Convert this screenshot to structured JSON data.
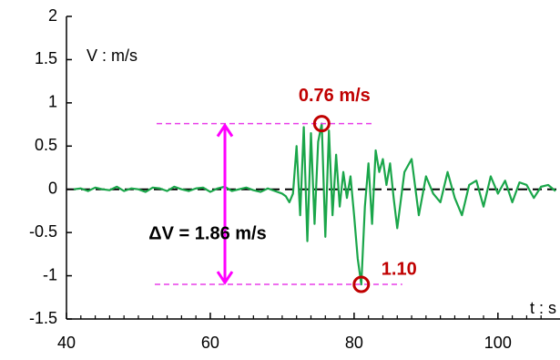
{
  "chart_data": {
    "type": "line",
    "y_label": "V : m/s",
    "x_label": "t : s",
    "annotations": {
      "peak_label": "0.76 m/s",
      "trough_label": "1.10",
      "delta_label": "ΔV = 1.86 m/s"
    },
    "xlim": [
      40,
      108
    ],
    "xticks": [
      40,
      60,
      80,
      100
    ],
    "xminorticks": [
      42,
      44,
      46,
      48,
      50,
      52,
      54,
      56,
      58,
      62,
      64,
      66,
      68,
      70,
      72,
      74,
      76,
      78,
      82,
      84,
      86,
      88,
      90,
      92,
      94,
      96,
      98,
      102,
      104,
      106
    ],
    "ylim": [
      -1.5,
      2
    ],
    "yticks": [
      -1.5,
      -1,
      -0.5,
      0,
      0.5,
      1,
      1.5,
      2
    ],
    "x": [
      41,
      42,
      43,
      44,
      45,
      46,
      47,
      48,
      49,
      50,
      51,
      52,
      53,
      54,
      55,
      56,
      57,
      58,
      59,
      60,
      61,
      62,
      63,
      64,
      65,
      66,
      67,
      68,
      69,
      70,
      70.5,
      71,
      71.5,
      72,
      72.5,
      73,
      73.5,
      74,
      74.5,
      75,
      75.5,
      76,
      76.5,
      77,
      77.5,
      78,
      78.5,
      79,
      79.5,
      80,
      80.5,
      81,
      81.5,
      82,
      82.5,
      83,
      83.5,
      84,
      84.5,
      85,
      85.5,
      86,
      87,
      88,
      89,
      90,
      91,
      92,
      93,
      94,
      95,
      96,
      97,
      98,
      99,
      100,
      101,
      102,
      103,
      104,
      105,
      106,
      107,
      108
    ],
    "series": [
      {
        "color": "#1aa64a",
        "values": [
          0,
          0.01,
          -0.02,
          0.02,
          0,
          -0.01,
          0.03,
          -0.02,
          0.01,
          0,
          -0.03,
          0.02,
          0.01,
          -0.02,
          0.03,
          0,
          -0.02,
          0.01,
          0.02,
          -0.03,
          0.01,
          0.03,
          -0.02,
          0,
          0.02,
          -0.01,
          -0.03,
          0.01,
          -0.02,
          -0.05,
          -0.08,
          -0.15,
          -0.05,
          0.5,
          -0.3,
          0.72,
          -0.6,
          0.65,
          -0.4,
          0.55,
          0.76,
          -0.55,
          0.68,
          -0.3,
          0.4,
          -0.2,
          0.2,
          -0.1,
          0.15,
          -0.3,
          -0.8,
          -1.1,
          -0.2,
          0.3,
          -0.4,
          0.45,
          0.2,
          0.35,
          0.05,
          0.3,
          -0.1,
          -0.45,
          0.2,
          0.35,
          -0.3,
          0.15,
          -0.05,
          -0.15,
          0.2,
          -0.1,
          -0.3,
          0.05,
          0.1,
          -0.2,
          0.15,
          -0.05,
          0.1,
          -0.15,
          0.08,
          0.05,
          -0.1,
          0.03,
          0.05,
          -0.02
        ]
      }
    ]
  }
}
